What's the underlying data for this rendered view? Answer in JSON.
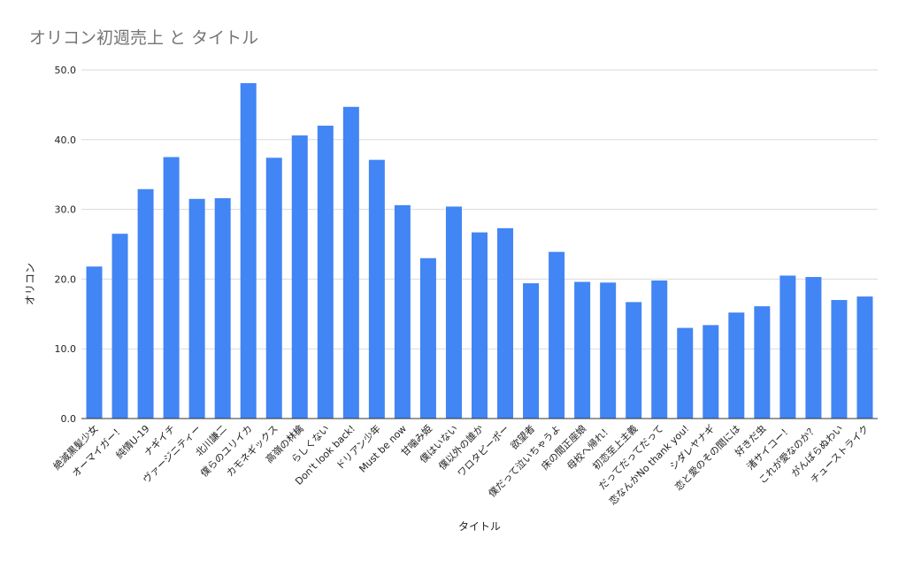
{
  "chart_data": {
    "type": "bar",
    "title": "オリコン初週売上 と タイトル",
    "xlabel": "タイトル",
    "ylabel": "オリコン",
    "ylim": [
      0,
      50
    ],
    "yticks": [
      "0.0",
      "10.0",
      "20.0",
      "30.0",
      "40.0",
      "50.0"
    ],
    "grid": true,
    "legend": "none",
    "bar_color": "#4285F4",
    "categories": [
      "絶滅黒髪少女",
      "オーマイガー！",
      "純情U-19",
      "ナギイチ",
      "ヴァージニティー",
      "北川謙二",
      "僕らのユリイカ",
      "カモネギックス",
      "高嶺の林檎",
      "らしくない",
      "Don't look back!",
      "ドリアン少年",
      "Must be now",
      "甘噛み姫",
      "僕はいない",
      "僕以外の誰か",
      "ワロタピーポー",
      "欲望者",
      "僕だって泣いちゃうよ",
      "床の間正座娘",
      "母校へ帰れ！",
      "初恋至上主義",
      "だってだってだって",
      "恋なんかNo thank you!",
      "シダレヤナギ",
      "恋と愛のその間には",
      "好きだ虫",
      "渚サイコー！",
      "これが愛なのか？",
      "がんばらぬわい",
      "チューストライク"
    ],
    "values": [
      21.8,
      26.5,
      32.9,
      37.5,
      31.5,
      31.6,
      48.1,
      37.4,
      40.6,
      42.0,
      44.7,
      37.1,
      30.6,
      23.0,
      30.4,
      26.7,
      27.3,
      19.4,
      23.9,
      19.6,
      19.5,
      16.7,
      19.8,
      13.0,
      13.4,
      15.2,
      16.1,
      20.5,
      20.3,
      17.0,
      17.5
    ]
  }
}
